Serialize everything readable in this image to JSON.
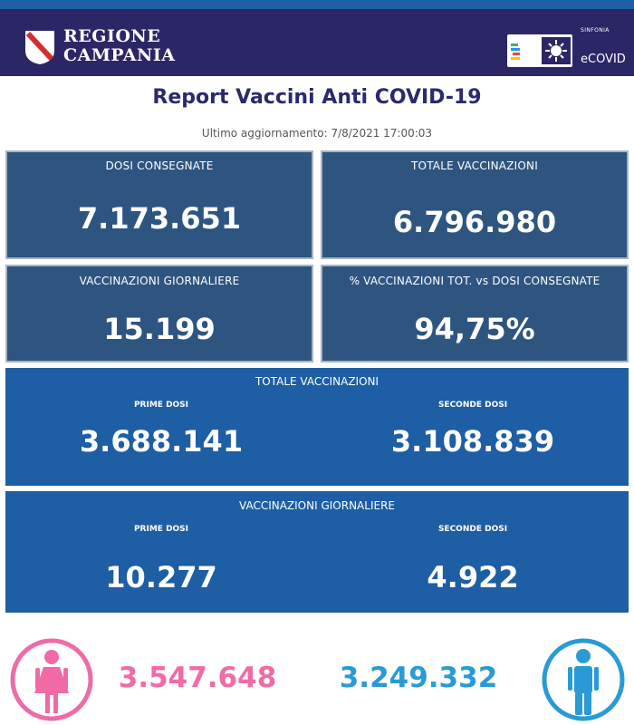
{
  "header": {
    "region_line1": "REGIONE",
    "region_line2": "CAMPANIA",
    "sinfonia": "SINFONIA",
    "ecovid": "eCOVID",
    "bg_color": "#2b2666"
  },
  "report": {
    "title": "Report Vaccini Anti COVID-19",
    "updated": "Ultimo aggiornamento: 7/8/2021  17:00:03"
  },
  "kpis": [
    {
      "label": "DOSI  CONSEGNATE",
      "value": "7.173.651"
    },
    {
      "label": "TOTALE VACCINAZIONI",
      "value": "6.796.980"
    },
    {
      "label": "VACCINAZIONI GIORNALIERE",
      "value": "15.199"
    },
    {
      "label": "% VACCINAZIONI TOT. vs DOSI CONSEGNATE",
      "value": "94,75%"
    }
  ],
  "totale": {
    "title": "TOTALE VACCINAZIONI",
    "first_label": "PRIME DOSI",
    "first_value": "3.688.141",
    "second_label": "SECONDE DOSI",
    "second_value": "3.108.839"
  },
  "giornaliere": {
    "title": "VACCINAZIONI GIORNALIERE",
    "first_label": "PRIME DOSI",
    "first_value": "10.277",
    "second_label": "SECONDE DOSI",
    "second_value": "4.922"
  },
  "gender": {
    "female_value": "3.547.648",
    "male_value": "3.249.332",
    "female_icon": "female-person-icon",
    "male_icon": "male-person-icon",
    "female_color": "#f06ba6",
    "male_color": "#2a9ad6"
  }
}
